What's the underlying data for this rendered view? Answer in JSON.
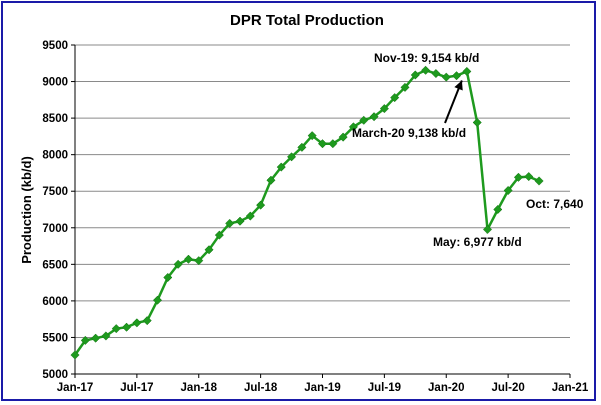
{
  "chart_data": {
    "type": "line",
    "title": "DPR Total  Production",
    "xlabel": "",
    "ylabel": "Production (kb/d)",
    "ylim": [
      5000,
      9500
    ],
    "yticks": [
      5000,
      5500,
      6000,
      6500,
      7000,
      7500,
      8000,
      8500,
      9000,
      9500
    ],
    "ytick_labels": [
      "5000",
      "5500",
      "6000",
      "6500",
      "7000",
      "7500",
      "8000",
      "8500",
      "9000",
      "9500"
    ],
    "xlim": [
      "2017-01",
      "2021-01"
    ],
    "xticks": [
      "2017-01",
      "2017-07",
      "2018-01",
      "2018-07",
      "2019-01",
      "2019-07",
      "2020-01",
      "2020-07",
      "2021-01"
    ],
    "xtick_labels": [
      "Jan-17",
      "Jul-17",
      "Jan-18",
      "Jul-18",
      "Jan-19",
      "Jul-19",
      "Jan-20",
      "Jul-20",
      "Jan-21"
    ],
    "grid": true,
    "legend": "none",
    "series": [
      {
        "color": "#1e9a1e",
        "marker": "diamond",
        "x": [
          "2017-01",
          "2017-02",
          "2017-03",
          "2017-04",
          "2017-05",
          "2017-06",
          "2017-07",
          "2017-08",
          "2017-09",
          "2017-10",
          "2017-11",
          "2017-12",
          "2018-01",
          "2018-02",
          "2018-03",
          "2018-04",
          "2018-05",
          "2018-06",
          "2018-07",
          "2018-08",
          "2018-09",
          "2018-10",
          "2018-11",
          "2018-12",
          "2019-01",
          "2019-02",
          "2019-03",
          "2019-04",
          "2019-05",
          "2019-06",
          "2019-07",
          "2019-08",
          "2019-09",
          "2019-10",
          "2019-11",
          "2019-12",
          "2020-01",
          "2020-02",
          "2020-03",
          "2020-04",
          "2020-05",
          "2020-06",
          "2020-07",
          "2020-08",
          "2020-09",
          "2020-10"
        ],
        "values": [
          5260,
          5460,
          5490,
          5520,
          5620,
          5640,
          5700,
          5730,
          6010,
          6320,
          6500,
          6570,
          6550,
          6700,
          6900,
          7060,
          7090,
          7160,
          7310,
          7650,
          7830,
          7970,
          8100,
          8260,
          8150,
          8150,
          8240,
          8380,
          8470,
          8520,
          8630,
          8780,
          8920,
          9090,
          9154,
          9110,
          9060,
          9080,
          9138,
          8440,
          6977,
          7250,
          7510,
          7690,
          7700,
          7640
        ]
      }
    ],
    "annotations": [
      {
        "text": "Nov-19: 9,154 kb/d",
        "x": "2019-11",
        "y": 9154
      },
      {
        "text": "March-20 9,138 kb/d",
        "x": "2020-03",
        "y": 9138
      },
      {
        "text": "May: 6,977 kb/d",
        "x": "2020-05",
        "y": 6977
      },
      {
        "text": "Oct: 7,640",
        "x": "2020-10",
        "y": 7640
      }
    ]
  }
}
